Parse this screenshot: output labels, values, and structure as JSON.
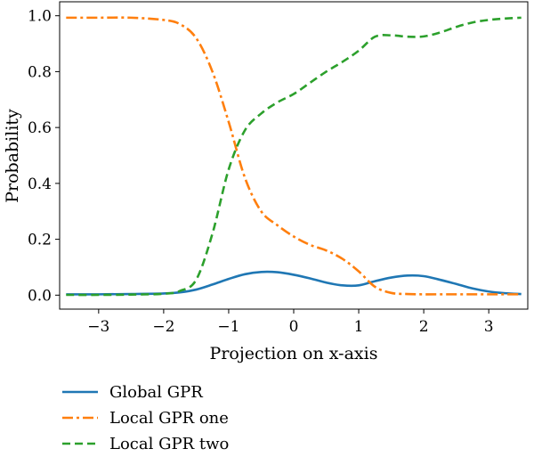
{
  "chart_data": {
    "type": "line",
    "xlabel": "Projection on x-axis",
    "ylabel": "Probability",
    "xlim": [
      -3.6,
      3.6
    ],
    "ylim": [
      -0.05,
      1.05
    ],
    "xticks": [
      -3,
      -2,
      -1,
      0,
      1,
      2,
      3
    ],
    "xtick_labels": [
      "−3",
      "−2",
      "−1",
      "0",
      "1",
      "2",
      "3"
    ],
    "yticks": [
      0.0,
      0.2,
      0.4,
      0.6,
      0.8,
      1.0
    ],
    "ytick_labels": [
      "0.0",
      "0.2",
      "0.4",
      "0.6",
      "0.8",
      "1.0"
    ],
    "grid": false,
    "legend_position": "bottom-left, below plot",
    "x": [
      -3.5,
      -3.0,
      -2.5,
      -2.0,
      -1.75,
      -1.5,
      -1.25,
      -1.0,
      -0.75,
      -0.5,
      -0.25,
      0.0,
      0.25,
      0.5,
      0.75,
      1.0,
      1.25,
      1.5,
      1.75,
      2.0,
      2.25,
      2.5,
      2.75,
      3.0,
      3.25,
      3.5
    ],
    "series": [
      {
        "name": "Global GPR",
        "color": "#1f77b4",
        "dash": "solid",
        "values": [
          0.003,
          0.003,
          0.004,
          0.006,
          0.01,
          0.02,
          0.038,
          0.058,
          0.075,
          0.083,
          0.082,
          0.073,
          0.06,
          0.045,
          0.035,
          0.035,
          0.05,
          0.063,
          0.07,
          0.068,
          0.055,
          0.04,
          0.024,
          0.013,
          0.007,
          0.004
        ]
      },
      {
        "name": "Local GPR one",
        "color": "#ff7f0e",
        "dash": "dashdot",
        "values": [
          0.993,
          0.993,
          0.993,
          0.985,
          0.97,
          0.92,
          0.8,
          0.62,
          0.42,
          0.3,
          0.25,
          0.21,
          0.18,
          0.16,
          0.13,
          0.085,
          0.03,
          0.008,
          0.004,
          0.003,
          0.003,
          0.003,
          0.003,
          0.003,
          0.003,
          0.003
        ]
      },
      {
        "name": "Local GPR two",
        "color": "#2ca02c",
        "dash": "dashed",
        "values": [
          0.001,
          0.001,
          0.002,
          0.005,
          0.015,
          0.055,
          0.22,
          0.45,
          0.59,
          0.65,
          0.69,
          0.72,
          0.76,
          0.8,
          0.835,
          0.875,
          0.925,
          0.93,
          0.925,
          0.926,
          0.94,
          0.96,
          0.976,
          0.985,
          0.99,
          0.993
        ]
      }
    ]
  }
}
